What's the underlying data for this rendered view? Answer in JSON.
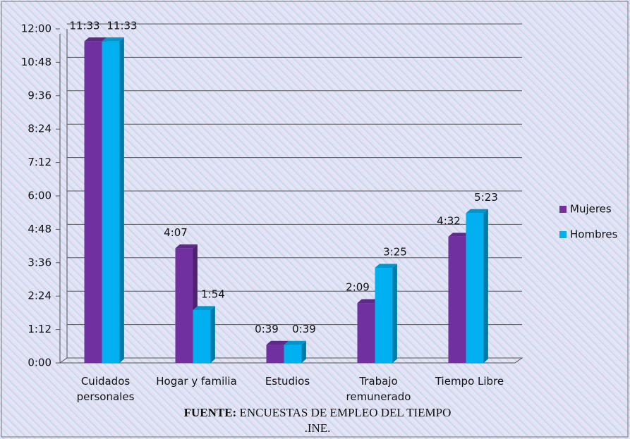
{
  "chart_data": {
    "type": "bar",
    "categories": [
      "Cuidados personales",
      "Hogar y familia",
      "Estudios",
      "Trabajo remunerado",
      "Tiempo Libre"
    ],
    "series": [
      {
        "name": "Mujeres",
        "color": "#7030a0",
        "values": [
          693,
          247,
          39,
          129,
          272
        ],
        "value_labels": [
          "11:33",
          "4:07",
          "0:39",
          "2:09",
          "4:32"
        ]
      },
      {
        "name": "Hombres",
        "color": "#00b0f0",
        "values": [
          693,
          114,
          39,
          205,
          323
        ],
        "value_labels": [
          "11:33",
          "1:54",
          "0:39",
          "3:25",
          "5:23"
        ]
      }
    ],
    "ylim": [
      0,
      720
    ],
    "yticks": [
      {
        "value": 0,
        "label": "0:00"
      },
      {
        "value": 72,
        "label": "1:12"
      },
      {
        "value": 144,
        "label": "2:24"
      },
      {
        "value": 216,
        "label": "3:36"
      },
      {
        "value": 288,
        "label": "4:48"
      },
      {
        "value": 360,
        "label": "6:00"
      },
      {
        "value": 432,
        "label": "7:12"
      },
      {
        "value": 504,
        "label": "8:24"
      },
      {
        "value": 576,
        "label": "9:36"
      },
      {
        "value": 648,
        "label": "10:48"
      },
      {
        "value": 720,
        "label": "12:00"
      }
    ],
    "grid": true,
    "legend": "right",
    "source_label": "FUENTE:",
    "source": "ENCUESTAS DE EMPLEO DEL TIEMPO .INE."
  }
}
